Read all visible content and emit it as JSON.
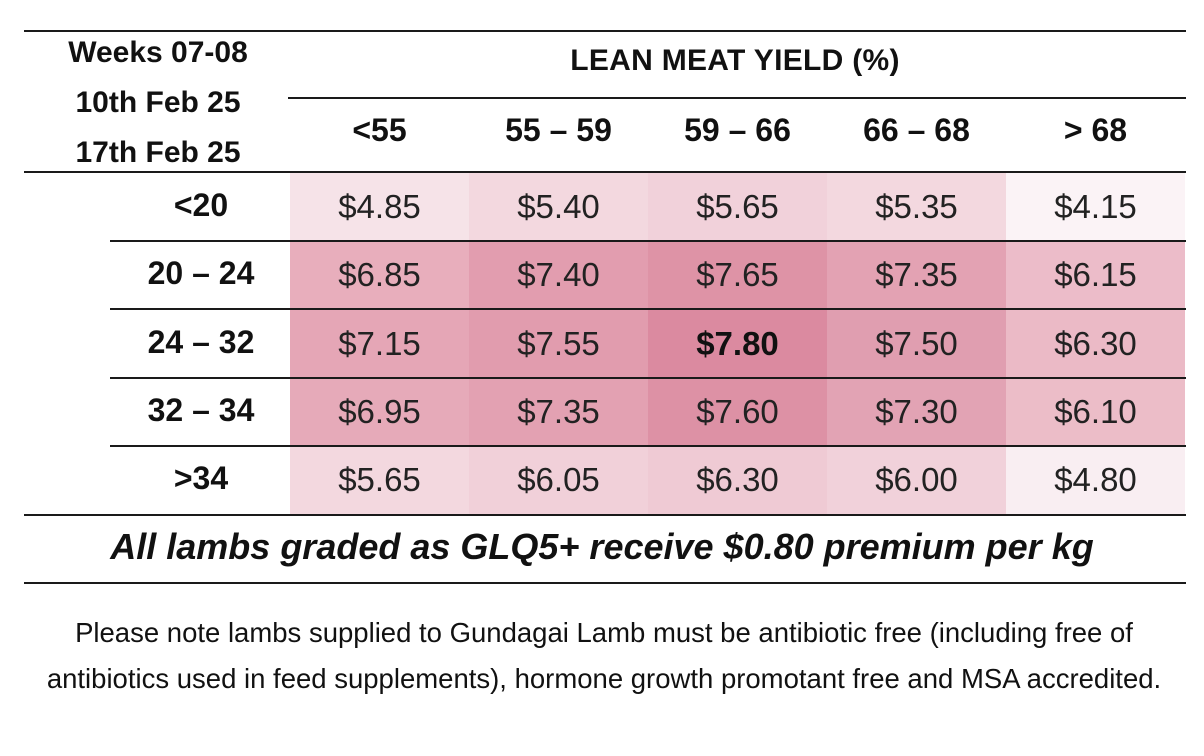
{
  "period": {
    "line1": "Weeks 07-08",
    "line2": "10th Feb 25",
    "line3": "17th Feb 25"
  },
  "header": {
    "title": "LEAN MEAT YIELD (%)",
    "columns": [
      "<55",
      "55 – 59",
      "59 – 66",
      "66 – 68",
      "> 68"
    ]
  },
  "rows": [
    {
      "label": "<20",
      "values": [
        "$4.85",
        "$5.40",
        "$5.65",
        "$5.35",
        "$4.15"
      ]
    },
    {
      "label": "20 – 24",
      "values": [
        "$6.85",
        "$7.40",
        "$7.65",
        "$7.35",
        "$6.15"
      ]
    },
    {
      "label": "24 – 32",
      "values": [
        "$7.15",
        "$7.55",
        "$7.80",
        "$7.50",
        "$6.30"
      ]
    },
    {
      "label": "32 – 34",
      "values": [
        "$6.95",
        "$7.35",
        "$7.60",
        "$7.30",
        "$6.10"
      ]
    },
    {
      "label": ">34",
      "values": [
        "$5.65",
        "$6.05",
        "$6.30",
        "$6.00",
        "$4.80"
      ]
    }
  ],
  "cell_colors": [
    [
      "#f6e3e8",
      "#f3d8df",
      "#f1d1da",
      "#f3d8df",
      "#fbf3f6"
    ],
    [
      "#e8aebc",
      "#e29daf",
      "#de93a6",
      "#e3a2b3",
      "#ecbcc9"
    ],
    [
      "#e5a6b6",
      "#e19cae",
      "#db8aa0",
      "#e09eb0",
      "#ebbac6"
    ],
    [
      "#e6aab9",
      "#e3a1b2",
      "#dd91a5",
      "#e2a3b4",
      "#ecbdc8"
    ],
    [
      "#f3d8df",
      "#f1d0d9",
      "#efcad4",
      "#f1d1da",
      "#f9eef2"
    ]
  ],
  "highlight_cell": "$7.80",
  "premium_note": "All lambs graded as GLQ5+ receive $0.80 premium per kg",
  "footnote": "Please note lambs supplied to Gundagai Lamb must be antibiotic free (including free of antibiotics used in feed supplements), hormone growth promotant free and MSA accredited."
}
